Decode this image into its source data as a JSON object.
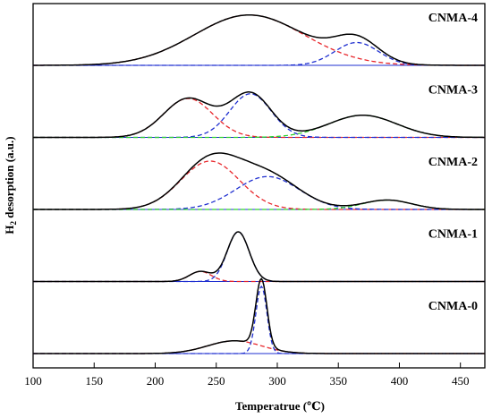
{
  "chart_data": {
    "type": "line",
    "xlabel": "Temperatrue (℃)",
    "ylabel": "H₂ desorption (a.u.)",
    "ylabel_main": "H",
    "ylabel_sub": "2",
    "ylabel_rest": " desorption (a.u.)",
    "xlim": [
      100,
      470
    ],
    "x_ticks": [
      100,
      150,
      200,
      250,
      300,
      350,
      400,
      450
    ],
    "y_ticks_shown": false,
    "colors": {
      "total": "#000000",
      "peak_low": "#e8262b",
      "peak_mid": "#1f2fd0",
      "peak_high": "#2fd12f",
      "baseline": "#1f2fd0"
    },
    "samples": [
      {
        "label": "CNMA-4",
        "offset": 4.0,
        "peaks": [
          {
            "center": 277,
            "height": 0.75,
            "width": 45,
            "color_key": "peak_low"
          },
          {
            "center": 365,
            "height": 0.34,
            "width": 18,
            "color_key": "peak_mid"
          }
        ]
      },
      {
        "label": "CNMA-3",
        "offset": 3.0,
        "peaks": [
          {
            "center": 227,
            "height": 0.58,
            "width": 20,
            "color_key": "peak_low"
          },
          {
            "center": 278,
            "height": 0.65,
            "width": 17,
            "color_key": "peak_mid"
          },
          {
            "center": 370,
            "height": 0.33,
            "width": 28,
            "color_key": "peak_high"
          }
        ]
      },
      {
        "label": "CNMA-2",
        "offset": 2.0,
        "peaks": [
          {
            "center": 245,
            "height": 0.72,
            "width": 24,
            "color_key": "peak_low"
          },
          {
            "center": 292,
            "height": 0.49,
            "width": 26,
            "color_key": "peak_mid"
          },
          {
            "center": 390,
            "height": 0.14,
            "width": 20,
            "color_key": "peak_high"
          }
        ]
      },
      {
        "label": "CNMA-1",
        "offset": 1.0,
        "peaks": [
          {
            "center": 237,
            "height": 0.15,
            "width": 9,
            "color_key": "peak_low"
          },
          {
            "center": 268,
            "height": 0.74,
            "width": 9,
            "color_key": "peak_mid"
          }
        ]
      },
      {
        "label": "CNMA-0",
        "offset": 0.0,
        "peaks": [
          {
            "center": 265,
            "height": 0.19,
            "width": 22,
            "color_key": "peak_low"
          },
          {
            "center": 287,
            "height": 1.0,
            "width": 4.5,
            "color_key": "peak_mid"
          }
        ]
      }
    ]
  }
}
